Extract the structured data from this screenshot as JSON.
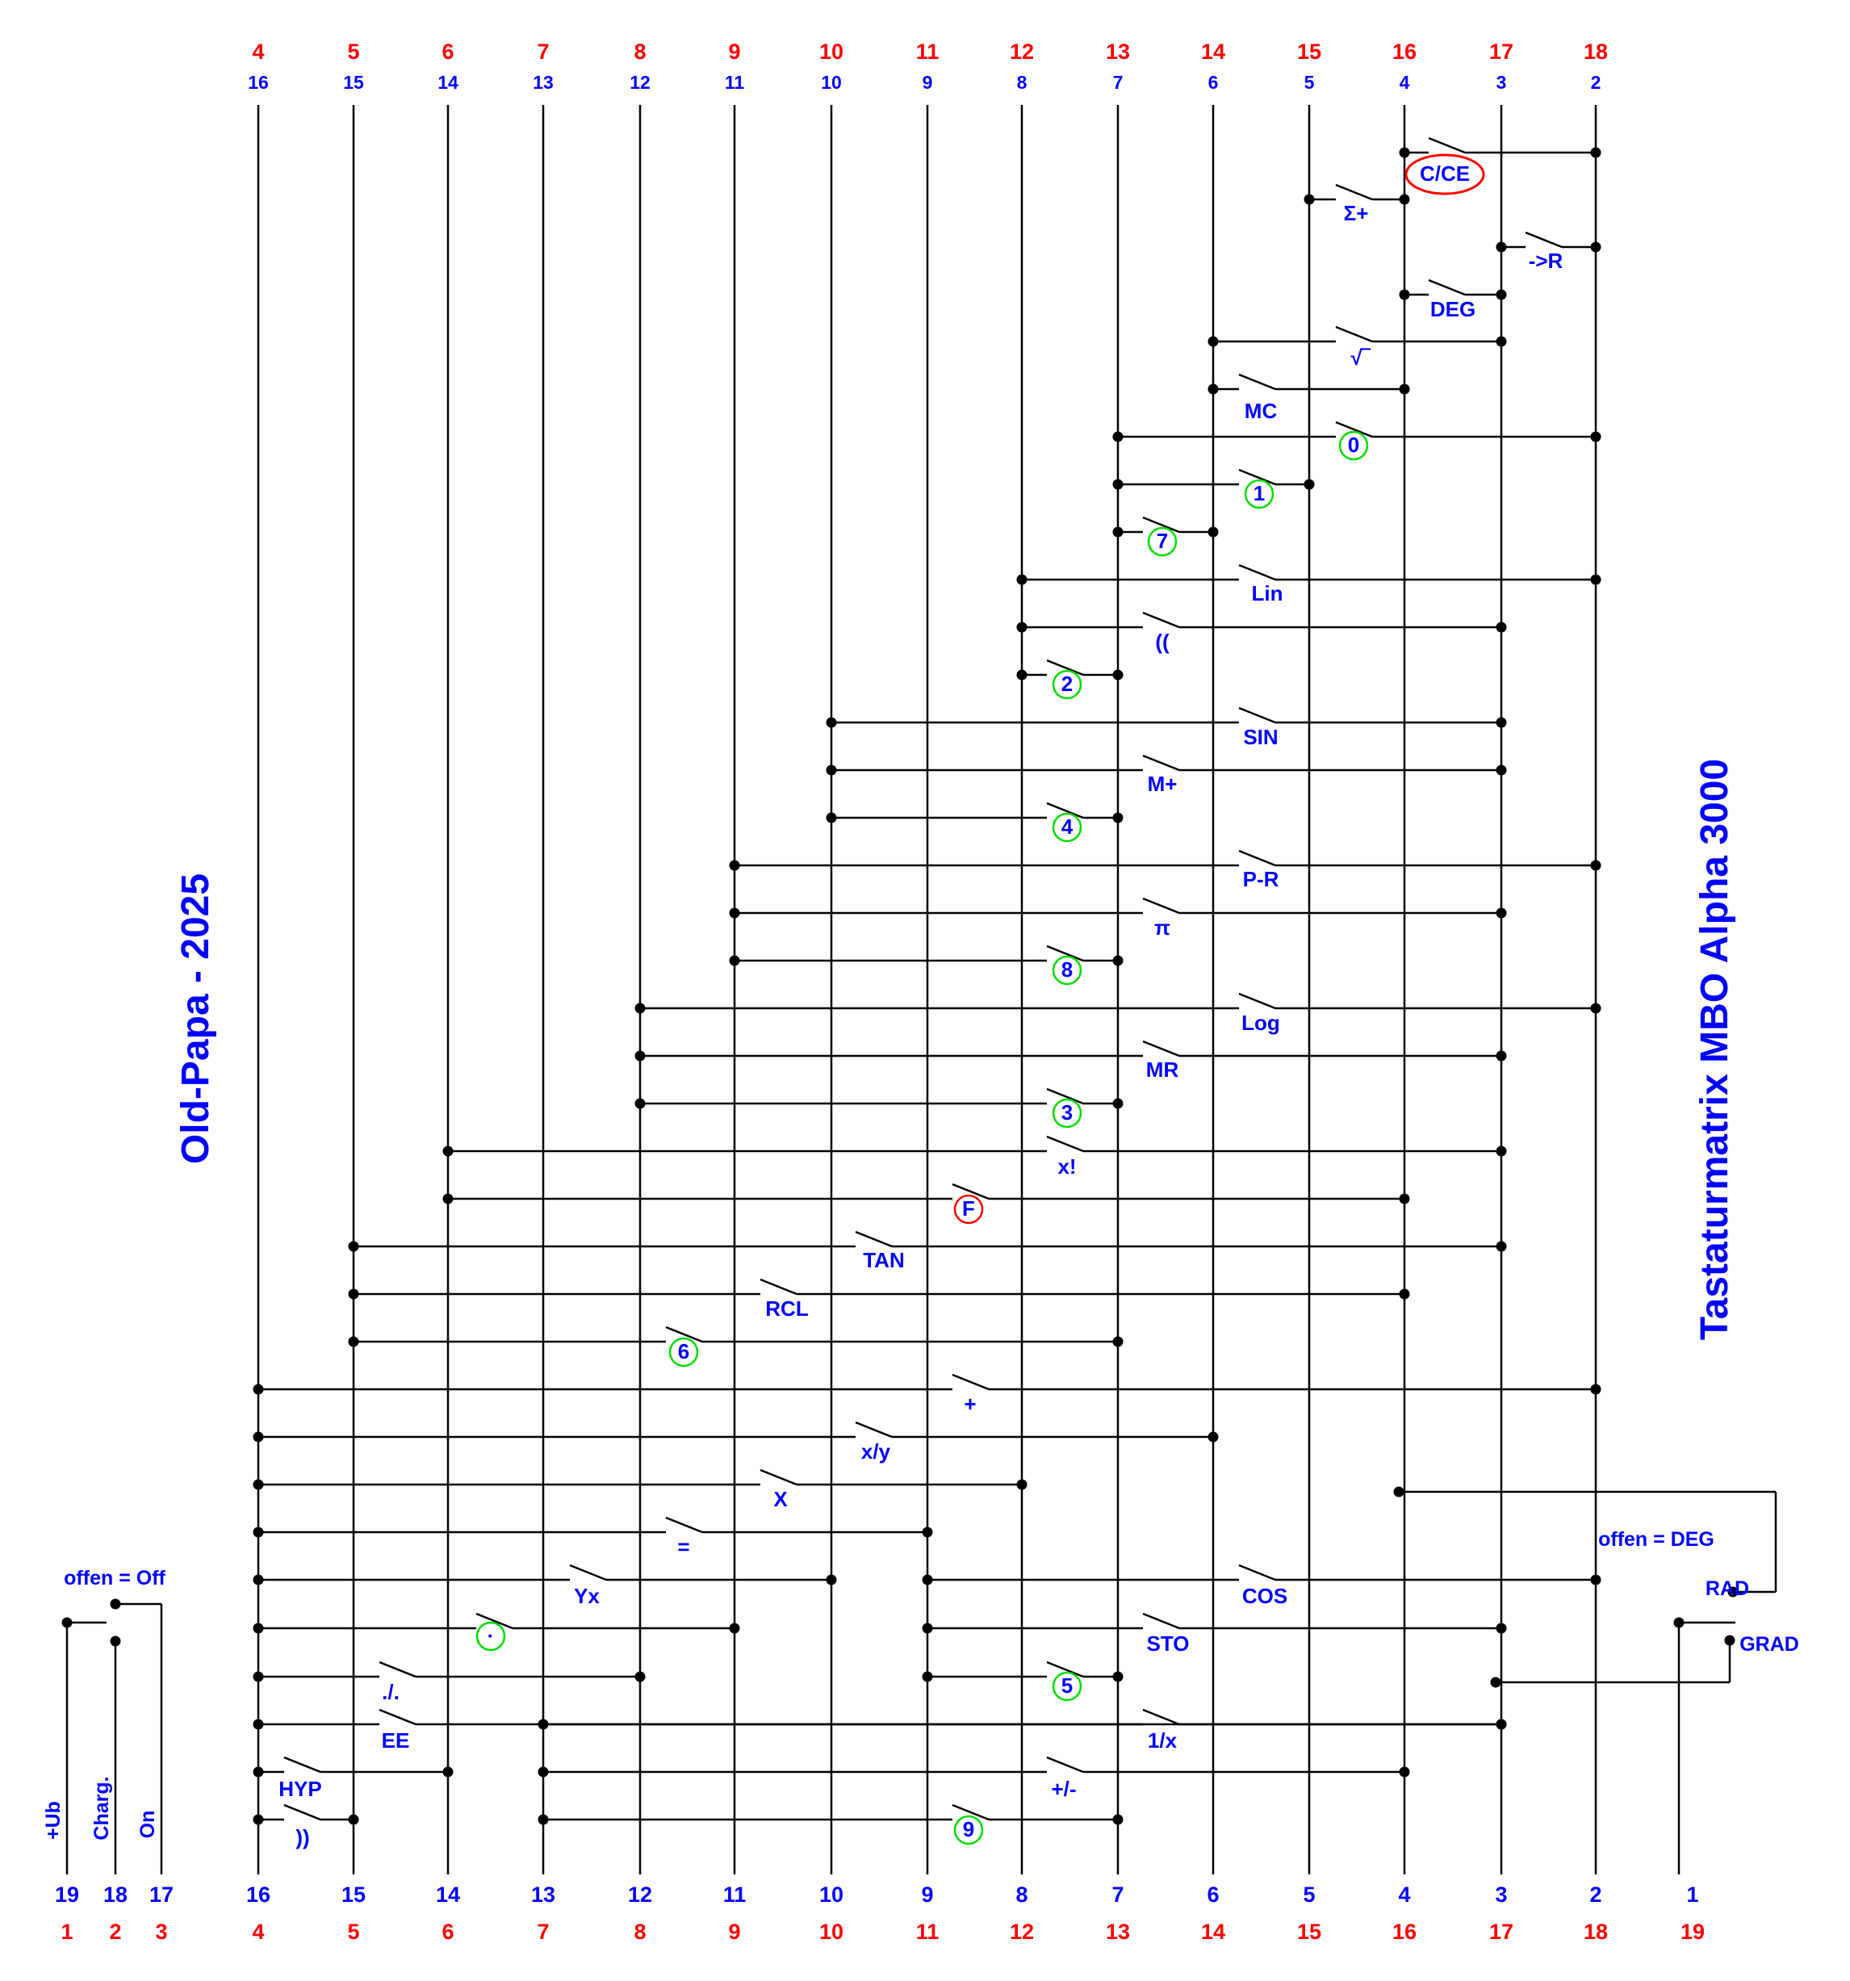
{
  "colors": {
    "blue": "#0000ff",
    "red": "#ff0000",
    "green": "#00dd00",
    "line": "#000000"
  },
  "top_red_labels": [
    "4",
    "5",
    "6",
    "7",
    "8",
    "9",
    "10",
    "11",
    "12",
    "13",
    "14",
    "15",
    "16",
    "17",
    "18"
  ],
  "top_blue_labels": [
    "16",
    "15",
    "14",
    "13",
    "12",
    "11",
    "10",
    "9",
    "8",
    "7",
    "6",
    "5",
    "4",
    "3",
    "2"
  ],
  "bottom_blue_labels": [
    "19",
    "18",
    "17",
    "16",
    "15",
    "14",
    "13",
    "12",
    "11",
    "10",
    "9",
    "8",
    "7",
    "6",
    "5",
    "4",
    "3",
    "2",
    "1"
  ],
  "bottom_red_labels": [
    "1",
    "2",
    "3",
    "4",
    "5",
    "6",
    "7",
    "8",
    "9",
    "10",
    "11",
    "12",
    "13",
    "14",
    "15",
    "16",
    "17",
    "18",
    "19"
  ],
  "left_title": "Old-Papa - 2025",
  "right_title": "Tastaturmatrix MBO Alpha 3000",
  "power_switch": {
    "state_note": "offen = Off",
    "pins": [
      "+Ub",
      "Charg.",
      "On"
    ]
  },
  "angle_switch": {
    "state_note": "offen = DEG",
    "positions": [
      "RAD",
      "GRAD"
    ]
  },
  "keys": [
    {
      "label": "C/CE",
      "mark": "red-ellipse"
    },
    {
      "label": "Σ+",
      "mark": ""
    },
    {
      "label": "->R",
      "mark": ""
    },
    {
      "label": "DEG",
      "mark": ""
    },
    {
      "label": "√‾",
      "mark": ""
    },
    {
      "label": "MC",
      "mark": ""
    },
    {
      "label": "0",
      "mark": "green-circle"
    },
    {
      "label": "1",
      "mark": "green-circle"
    },
    {
      "label": "7",
      "mark": "green-circle"
    },
    {
      "label": "Lin",
      "mark": ""
    },
    {
      "label": "((",
      "mark": ""
    },
    {
      "label": "2",
      "mark": "green-circle"
    },
    {
      "label": "SIN",
      "mark": ""
    },
    {
      "label": "M+",
      "mark": ""
    },
    {
      "label": "4",
      "mark": "green-circle"
    },
    {
      "label": "P-R",
      "mark": ""
    },
    {
      "label": "π",
      "mark": ""
    },
    {
      "label": "8",
      "mark": "green-circle"
    },
    {
      "label": "Log",
      "mark": ""
    },
    {
      "label": "MR",
      "mark": ""
    },
    {
      "label": "3",
      "mark": "green-circle"
    },
    {
      "label": "x!",
      "mark": ""
    },
    {
      "label": "F",
      "mark": "red-circle"
    },
    {
      "label": "TAN",
      "mark": ""
    },
    {
      "label": "RCL",
      "mark": ""
    },
    {
      "label": "6",
      "mark": "green-circle"
    },
    {
      "label": "+",
      "mark": ""
    },
    {
      "label": "x/y",
      "mark": ""
    },
    {
      "label": "X",
      "mark": ""
    },
    {
      "label": "=",
      "mark": ""
    },
    {
      "label": "Yx",
      "mark": ""
    },
    {
      "label": "COS",
      "mark": ""
    },
    {
      "label": "·",
      "mark": "green-circle"
    },
    {
      "label": "STO",
      "mark": ""
    },
    {
      "label": "./.",
      "mark": ""
    },
    {
      "label": "5",
      "mark": "green-circle"
    },
    {
      "label": "EE",
      "mark": ""
    },
    {
      "label": "1/x",
      "mark": ""
    },
    {
      "label": "HYP",
      "mark": ""
    },
    {
      "label": "+/-",
      "mark": ""
    },
    {
      "label": "))",
      "mark": ""
    },
    {
      "label": "9",
      "mark": "green-circle"
    }
  ]
}
